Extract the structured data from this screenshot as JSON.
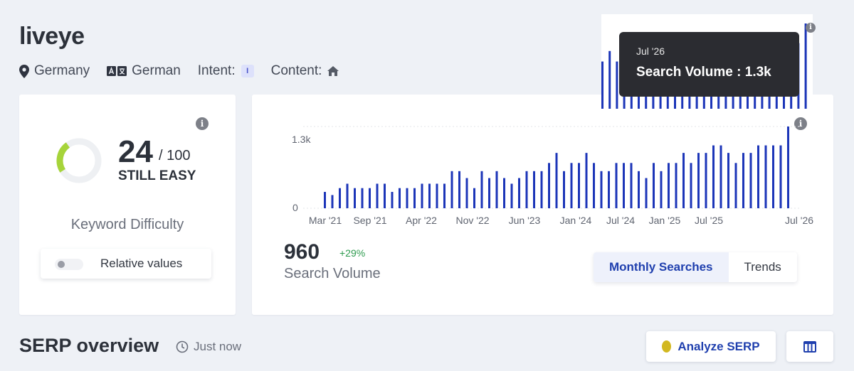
{
  "keyword": "liveye",
  "meta": {
    "location": "Germany",
    "language_flag": "DE",
    "language": "German",
    "intent_label": "Intent:",
    "intent_badge": "I",
    "content_label": "Content:"
  },
  "keyword_difficulty": {
    "score": "24",
    "max": "/ 100",
    "status": "STILL EASY",
    "label": "Keyword Difficulty",
    "gauge_fraction": 0.24,
    "gauge_color": "#a6d43a",
    "relative_values_label": "Relative values"
  },
  "search_volume": {
    "value": "960",
    "change": "+29%",
    "label": "Search Volume",
    "tabs": {
      "monthly": "Monthly Searches",
      "trends": "Trends"
    }
  },
  "chart_data": {
    "type": "bar",
    "color": "#1c35b8",
    "ytick_labels": [
      "0",
      "1.3k"
    ],
    "ylim": [
      0,
      1300
    ],
    "xtick_labels": [
      "Mar '21",
      "Sep '21",
      "Apr '22",
      "Nov '22",
      "Jun '23",
      "Jan '24",
      "Jul '24",
      "Jan '25",
      "Jul '25",
      "Jul '26"
    ],
    "values": [
      260,
      210,
      320,
      390,
      320,
      320,
      320,
      390,
      390,
      260,
      320,
      320,
      320,
      390,
      390,
      390,
      390,
      590,
      590,
      480,
      320,
      590,
      480,
      590,
      480,
      390,
      480,
      590,
      590,
      590,
      720,
      880,
      590,
      720,
      720,
      880,
      720,
      590,
      590,
      720,
      720,
      720,
      590,
      480,
      720,
      590,
      720,
      720,
      880,
      720,
      880,
      880,
      1000,
      1000,
      880,
      720,
      880,
      880,
      1000,
      1000,
      1000,
      1000,
      1300
    ]
  },
  "tooltip": {
    "date": "Jul '26",
    "text": "Search Volume : 1.3k"
  },
  "serp": {
    "title": "SERP overview",
    "time": "Just now",
    "analyze_label": "Analyze SERP"
  }
}
